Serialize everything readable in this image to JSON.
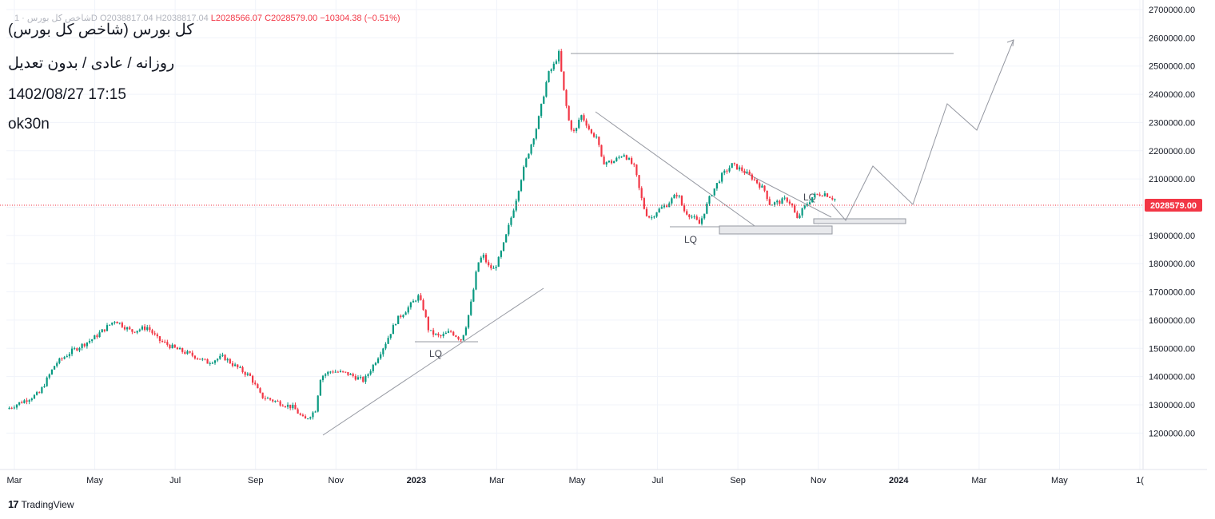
{
  "header": {
    "symbol_faded": "شاخص کل بورس · 1D",
    "open_text": "O2038817.04",
    "high_text": "H2038817.04",
    "low_text": "L2028566.07",
    "close_text": "C2028579.00",
    "change_text": "−10304.38 (−0.51%)"
  },
  "info_lines": [
    "کل بورس (شاخص کل بورس)",
    "روزانه / عادی / بدون تعدیل",
    "1402/08/27 17:15",
    "ok30n"
  ],
  "footer": {
    "brand_logo": "17",
    "brand_name": "TradingView"
  },
  "colors": {
    "up": "#089981",
    "down": "#f23645",
    "line": "#9598a1",
    "grid": "#f0f3fa",
    "price_tag": "#f23645"
  },
  "chart_data": {
    "type": "candlestick",
    "ylim": [
      1150000,
      2700000
    ],
    "y_ticks": [
      "2700000.00",
      "2600000.00",
      "2500000.00",
      "2400000.00",
      "2300000.00",
      "2200000.00",
      "2100000.00",
      "2000000.00",
      "1900000.00",
      "1800000.00",
      "1700000.00",
      "1600000.00",
      "1500000.00",
      "1400000.00",
      "1300000.00",
      "1200000.00"
    ],
    "x_ticks": [
      "Mar",
      "May",
      "Jul",
      "Sep",
      "Nov",
      "2023",
      "Mar",
      "May",
      "Jul",
      "Sep",
      "Nov",
      "2024",
      "Mar",
      "May",
      "1("
    ],
    "bold_x_ticks": [
      "2023",
      "2024"
    ],
    "last_price_label": "2028579.00",
    "last_price": 2028579,
    "series_path": [
      [
        0,
        1285000
      ],
      [
        6,
        1340000
      ],
      [
        9,
        1445000
      ],
      [
        12,
        1490000
      ],
      [
        16,
        1535000
      ],
      [
        20,
        1600000
      ],
      [
        23,
        1560000
      ],
      [
        26,
        1575000
      ],
      [
        28,
        1530000
      ],
      [
        31,
        1500000
      ],
      [
        35,
        1470000
      ],
      [
        37,
        1450000
      ],
      [
        40,
        1470000
      ],
      [
        42,
        1440000
      ],
      [
        45,
        1400000
      ],
      [
        47,
        1330000
      ],
      [
        50,
        1310000
      ],
      [
        53,
        1290000
      ],
      [
        55,
        1245000
      ],
      [
        57,
        1280000
      ],
      [
        58,
        1400000
      ],
      [
        60,
        1420000
      ],
      [
        63,
        1410000
      ],
      [
        66,
        1385000
      ],
      [
        68,
        1450000
      ],
      [
        70,
        1520000
      ],
      [
        72,
        1600000
      ],
      [
        74,
        1640000
      ],
      [
        76,
        1685000
      ],
      [
        77,
        1640000
      ],
      [
        78,
        1560000
      ],
      [
        80,
        1540000
      ],
      [
        82,
        1560000
      ],
      [
        84,
        1530000
      ],
      [
        85,
        1590000
      ],
      [
        86,
        1680000
      ],
      [
        87,
        1800000
      ],
      [
        88,
        1830000
      ],
      [
        89,
        1790000
      ],
      [
        90,
        1780000
      ],
      [
        91,
        1820000
      ],
      [
        92,
        1880000
      ],
      [
        93,
        1950000
      ],
      [
        94,
        2020000
      ],
      [
        95,
        2100000
      ],
      [
        96,
        2170000
      ],
      [
        97,
        2230000
      ],
      [
        98,
        2290000
      ],
      [
        99,
        2380000
      ],
      [
        100,
        2470000
      ],
      [
        101,
        2500000
      ],
      [
        102,
        2545000
      ],
      [
        103,
        2400000
      ],
      [
        104,
        2290000
      ],
      [
        105,
        2260000
      ],
      [
        106,
        2330000
      ],
      [
        107,
        2300000
      ],
      [
        108,
        2260000
      ],
      [
        109,
        2250000
      ],
      [
        110,
        2160000
      ],
      [
        112,
        2160000
      ],
      [
        114,
        2190000
      ],
      [
        116,
        2140000
      ],
      [
        117,
        2050000
      ],
      [
        118,
        1980000
      ],
      [
        119,
        1960000
      ],
      [
        120,
        1985000
      ],
      [
        122,
        2010000
      ],
      [
        124,
        2050000
      ],
      [
        125,
        1990000
      ],
      [
        127,
        1960000
      ],
      [
        128,
        1940000
      ],
      [
        130,
        2040000
      ],
      [
        132,
        2110000
      ],
      [
        134,
        2150000
      ],
      [
        136,
        2130000
      ],
      [
        138,
        2100000
      ],
      [
        140,
        2060000
      ],
      [
        141,
        2010000
      ],
      [
        143,
        2020000
      ],
      [
        144,
        2030000
      ],
      [
        145,
        2010000
      ],
      [
        146,
        1955000
      ],
      [
        147,
        1990000
      ],
      [
        149,
        2040000
      ],
      [
        151,
        2050000
      ],
      [
        153,
        2028579
      ]
    ]
  },
  "annotations": {
    "labels": [
      "LQ",
      "LQ",
      "LQ"
    ]
  }
}
